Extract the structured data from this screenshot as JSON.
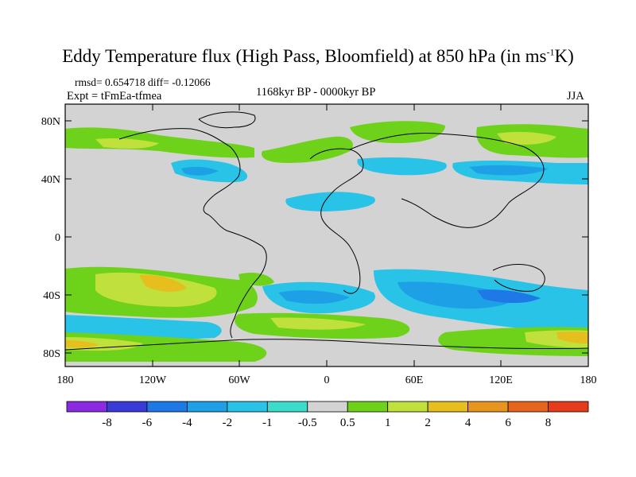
{
  "title": {
    "text": "Eddy Temperature flux (High Pass, Bloomfield) at 850 hPa (in ms",
    "sup": "-1",
    "suffix": "K)"
  },
  "stats": "rmsd= 0.654718 diff= -0.12066",
  "experiment": "Expt = tFmEa-tfmea",
  "period": "1168kyr BP - 0000kyr BP",
  "season": "JJA",
  "lat_labels": [
    "80N",
    "40N",
    "0",
    "40S",
    "80S"
  ],
  "lon_labels": [
    "180",
    "120W",
    "60W",
    "0",
    "60E",
    "120E",
    "180"
  ],
  "colorbar": {
    "labels": [
      "-8",
      "-6",
      "-4",
      "-2",
      "-1",
      "-0.5",
      "0.5",
      "1",
      "2",
      "4",
      "6",
      "8"
    ],
    "colors": [
      "#8a2be2",
      "#3a3ad8",
      "#1e78e6",
      "#1ea0e6",
      "#28c3e6",
      "#3cdccc",
      "#d3d3d3",
      "#6ed21a",
      "#c0e03c",
      "#e6be1e",
      "#e6961e",
      "#e6641e",
      "#e63c1e"
    ]
  },
  "colors": {
    "ocean_neutral": "#d3d3d3",
    "coast": "#000000"
  }
}
